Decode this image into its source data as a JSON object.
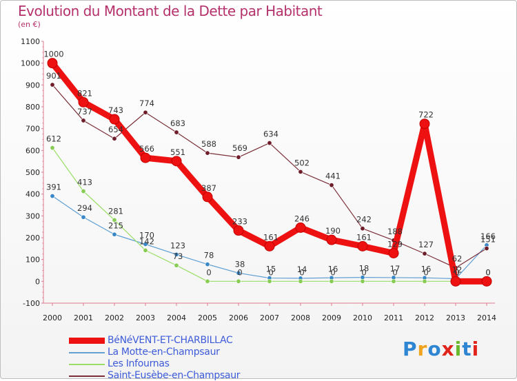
{
  "title": "Evolution du Montant de la Dette par Habitant",
  "subtitle": "(en €)",
  "logo": {
    "text": "Proxiti",
    "colors": [
      "#2e86d3",
      "#f0a31d",
      "#2e86d3",
      "#e0241b",
      "#6ab82c",
      "#2e86d3",
      "#e0241b"
    ]
  },
  "chart_data": {
    "type": "line",
    "x": [
      "2000",
      "2001",
      "2002",
      "2003",
      "2004",
      "2005",
      "2006",
      "2007",
      "2008",
      "2009",
      "2010",
      "2011",
      "2012",
      "2013",
      "2014"
    ],
    "ylim": [
      -100,
      1100
    ],
    "yticks": [
      "-100",
      "0",
      "100",
      "200",
      "300",
      "400",
      "500",
      "600",
      "700",
      "800",
      "900",
      "1000",
      "1100"
    ],
    "grid": false,
    "legend_position": "bottom-left",
    "series": [
      {
        "name": "BéNéVENT-ET-CHARBILLAC",
        "color": "#ee1111",
        "marker": "#ee1111",
        "highlight": true,
        "values": [
          1000,
          821,
          743,
          566,
          551,
          387,
          233,
          161,
          246,
          190,
          161,
          129,
          722,
          0,
          0
        ],
        "labels": [
          "1000",
          "821",
          "743",
          "566",
          "551",
          "387",
          "233",
          "161",
          "246",
          "190",
          "161",
          "129",
          "722",
          "0",
          "0"
        ]
      },
      {
        "name": "La Motte-en-Champsaur",
        "color": "#5f9fd2",
        "marker": "#3a87c8",
        "highlight": false,
        "values": [
          391,
          294,
          215,
          170,
          123,
          78,
          38,
          15,
          14,
          16,
          18,
          17,
          16,
          12,
          166
        ],
        "labels": [
          "391",
          "294",
          "215",
          "170",
          "123",
          "78",
          "38",
          "15",
          "14",
          "16",
          "18",
          "17",
          "16",
          "12",
          "166"
        ]
      },
      {
        "name": "Les Infournas",
        "color": "#99dd66",
        "marker": "#88cc55",
        "highlight": false,
        "values": [
          612,
          413,
          281,
          142,
          73,
          0,
          0,
          0,
          0,
          0,
          0,
          0,
          0,
          0,
          0
        ],
        "labels": [
          "612",
          "413",
          "281",
          "142",
          "73",
          "0",
          "0",
          "0",
          "0",
          "0",
          "0",
          "0",
          "0",
          "0",
          "0"
        ]
      },
      {
        "name": "Saint-Eusèbe-en-Champsaur",
        "color": "#7a2e38",
        "marker": "#6d1e2a",
        "highlight": false,
        "values": [
          901,
          737,
          654,
          774,
          683,
          588,
          569,
          634,
          502,
          441,
          242,
          188,
          127,
          62,
          151
        ],
        "labels": [
          "901",
          "737",
          "654",
          "774",
          "683",
          "588",
          "569",
          "634",
          "502",
          "441",
          "242",
          "188",
          "127",
          "62",
          "151"
        ]
      }
    ]
  }
}
